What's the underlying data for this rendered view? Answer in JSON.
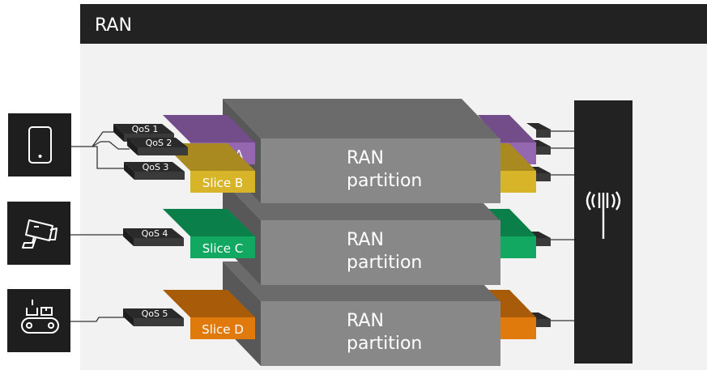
{
  "header": {
    "title": "RAN"
  },
  "devices": [
    {
      "icon": "smartphone-icon"
    },
    {
      "icon": "surveillance-camera-icon"
    },
    {
      "icon": "conveyor-belt-robot-icon"
    }
  ],
  "qos": [
    "QoS 1",
    "QoS 2",
    "QoS 3",
    "QoS 4",
    "QoS 5"
  ],
  "slices": [
    {
      "label": "Slice A",
      "color": "#9467b0",
      "top": "#734d89"
    },
    {
      "label": "Slice B",
      "color": "#d8b428",
      "top": "#a88a20"
    },
    {
      "label": "Slice C",
      "color": "#12a862",
      "top": "#0b7f4a"
    },
    {
      "label": "Slice D",
      "color": "#e07a0c",
      "top": "#a85c0a"
    }
  ],
  "partitions": [
    {
      "line1": "RAN",
      "line2": "partition"
    },
    {
      "line1": "RAN",
      "line2": "partition"
    },
    {
      "line1": "RAN",
      "line2": "partition"
    }
  ],
  "tower": {
    "icon": "radio-tower-icon"
  }
}
